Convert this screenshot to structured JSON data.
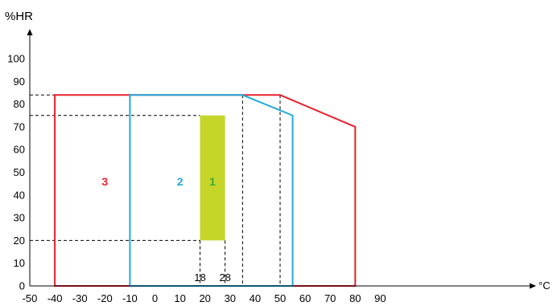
{
  "chart_data": {
    "type": "area",
    "title": "",
    "ylabel": "%HR",
    "xlabel": "°C",
    "xlim": [
      -50,
      95
    ],
    "ylim": [
      0,
      110
    ],
    "x_ticks": [
      -50,
      -40,
      -30,
      -20,
      -10,
      0,
      10,
      20,
      30,
      40,
      50,
      60,
      70,
      80,
      90
    ],
    "y_ticks": [
      0,
      10,
      20,
      30,
      40,
      50,
      60,
      70,
      80,
      90,
      100
    ],
    "grid": false,
    "colors": {
      "zone3": "#e8202a",
      "zone2": "#21a9db",
      "zone1_fill": "#c6d52a",
      "zone1_label": "#3aaa35",
      "axis": "#000000",
      "guide": "#000000"
    },
    "zones": [
      {
        "name": "3",
        "polygon": [
          [
            -40,
            0
          ],
          [
            -40,
            84
          ],
          [
            50,
            84
          ],
          [
            80,
            70
          ],
          [
            80,
            0
          ]
        ],
        "label_at": [
          -20,
          46
        ]
      },
      {
        "name": "2",
        "polygon": [
          [
            -10,
            0
          ],
          [
            -10,
            84
          ],
          [
            35,
            84
          ],
          [
            55,
            75
          ],
          [
            55,
            0
          ]
        ],
        "label_at": [
          10,
          46
        ]
      },
      {
        "name": "1",
        "polygon": [
          [
            18,
            20
          ],
          [
            18,
            75
          ],
          [
            28,
            75
          ],
          [
            28,
            20
          ]
        ],
        "label_at": [
          23,
          46
        ],
        "filled": true
      }
    ],
    "guides": [
      {
        "from": [
          -50,
          84
        ],
        "to": [
          -40,
          84
        ]
      },
      {
        "from": [
          -50,
          75
        ],
        "to": [
          18,
          75
        ]
      },
      {
        "from": [
          -50,
          20
        ],
        "to": [
          18,
          20
        ]
      },
      {
        "from": [
          18,
          20
        ],
        "to": [
          18,
          0
        ]
      },
      {
        "from": [
          28,
          20
        ],
        "to": [
          28,
          0
        ]
      },
      {
        "from": [
          35,
          84
        ],
        "to": [
          35,
          0
        ]
      },
      {
        "from": [
          50,
          84
        ],
        "to": [
          50,
          0
        ]
      }
    ],
    "annotations": [
      {
        "text": "18",
        "at": [
          18,
          2.5
        ]
      },
      {
        "text": "28",
        "at": [
          28,
          2.5
        ]
      }
    ]
  }
}
